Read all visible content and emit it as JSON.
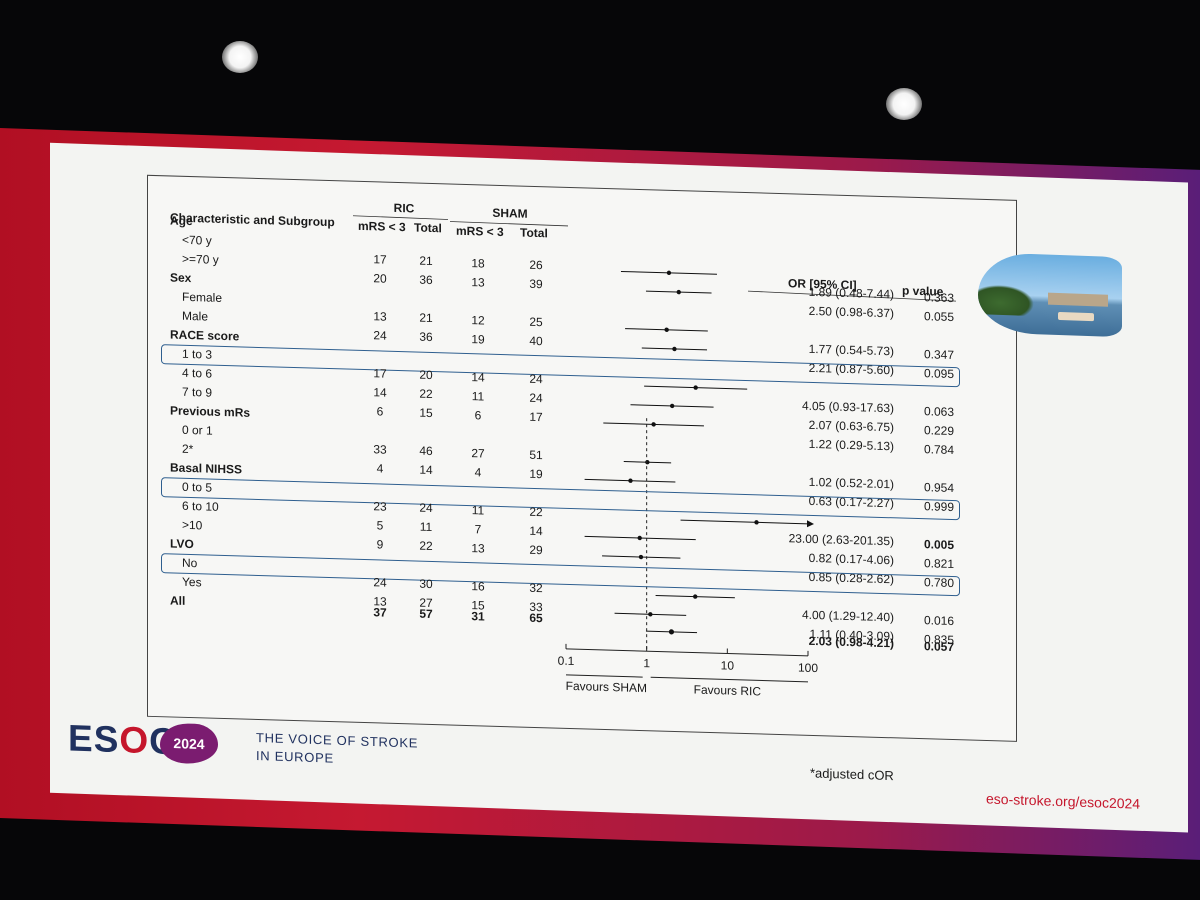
{
  "slide": {
    "footnote": "*adjusted cOR",
    "logo_text": "ESOC",
    "logo_year": "2024",
    "tagline_line1": "THE VOICE OF STROKE",
    "tagline_line2": "IN EUROPE",
    "url": "eso-stroke.org/esoc2024"
  },
  "colors": {
    "slide_band_red": "#c5162c",
    "slide_band_purple": "#5a1e78",
    "highlight_box": "#2f5f8f",
    "logo_navy": "#20315f"
  },
  "table": {
    "headers": {
      "characteristic": "Characteristic and Subgroup",
      "group1": "RIC",
      "group2": "SHAM",
      "mrs": "mRS < 3",
      "total": "Total",
      "or_ci": "OR [95% CI]",
      "p_value": "p value"
    },
    "rows": [
      {
        "label": "Age",
        "header": true
      },
      {
        "label": "<70 y",
        "ric_mrs": "17",
        "ric_total": "21",
        "sham_mrs": "18",
        "sham_total": "26",
        "or_text": "1.89 (0.48-7.44)",
        "p": "0.363"
      },
      {
        "label": ">=70 y",
        "ric_mrs": "20",
        "ric_total": "36",
        "sham_mrs": "13",
        "sham_total": "39",
        "or_text": "2.50 (0.98-6.37)",
        "p": "0.055"
      },
      {
        "label": "Sex",
        "header": true
      },
      {
        "label": "Female",
        "ric_mrs": "13",
        "ric_total": "21",
        "sham_mrs": "12",
        "sham_total": "25",
        "or_text": "1.77 (0.54-5.73)",
        "p": "0.347"
      },
      {
        "label": "Male",
        "ric_mrs": "24",
        "ric_total": "36",
        "sham_mrs": "19",
        "sham_total": "40",
        "or_text": "2.21 (0.87-5.60)",
        "p": "0.095"
      },
      {
        "label": "RACE score",
        "header": true
      },
      {
        "label": "1 to 3",
        "ric_mrs": "17",
        "ric_total": "20",
        "sham_mrs": "14",
        "sham_total": "24",
        "or_text": "4.05 (0.93-17.63)",
        "p": "0.063",
        "highlight": true
      },
      {
        "label": "4 to 6",
        "ric_mrs": "14",
        "ric_total": "22",
        "sham_mrs": "11",
        "sham_total": "24",
        "or_text": "2.07 (0.63-6.75)",
        "p": "0.229"
      },
      {
        "label": "7 to 9",
        "ric_mrs": "6",
        "ric_total": "15",
        "sham_mrs": "6",
        "sham_total": "17",
        "or_text": "1.22 (0.29-5.13)",
        "p": "0.784"
      },
      {
        "label": "Previous mRs",
        "header": true
      },
      {
        "label": "0 or 1",
        "ric_mrs": "33",
        "ric_total": "46",
        "sham_mrs": "27",
        "sham_total": "51",
        "or_text": "1.02 (0.52-2.01)",
        "p": "0.954"
      },
      {
        "label": "2*",
        "ric_mrs": "4",
        "ric_total": "14",
        "sham_mrs": "4",
        "sham_total": "19",
        "or_text": "0.63 (0.17-2.27)",
        "p": "0.999"
      },
      {
        "label": "Basal NIHSS",
        "header": true
      },
      {
        "label": "0 to 5",
        "ric_mrs": "23",
        "ric_total": "24",
        "sham_mrs": "11",
        "sham_total": "22",
        "or_text": "23.00 (2.63-201.35)",
        "p": "0.005",
        "highlight": true,
        "p_bold": true
      },
      {
        "label": "6 to 10",
        "ric_mrs": "5",
        "ric_total": "11",
        "sham_mrs": "7",
        "sham_total": "14",
        "or_text": "0.82 (0.17-4.06)",
        "p": "0.821"
      },
      {
        "label": ">10",
        "ric_mrs": "9",
        "ric_total": "22",
        "sham_mrs": "13",
        "sham_total": "29",
        "or_text": "0.85 (0.28-2.62)",
        "p": "0.780"
      },
      {
        "label": "LVO",
        "header": true
      },
      {
        "label": "No",
        "ric_mrs": "24",
        "ric_total": "30",
        "sham_mrs": "16",
        "sham_total": "32",
        "or_text": "4.00 (1.29-12.40)",
        "p": "0.016",
        "highlight": true
      },
      {
        "label": "Yes",
        "ric_mrs": "13",
        "ric_total": "27",
        "sham_mrs": "15",
        "sham_total": "33",
        "or_text": "1.11 (0.40-3.09)",
        "p": "0.835"
      },
      {
        "label": "All",
        "header": true,
        "overall": true,
        "ric_mrs": "37",
        "ric_total": "57",
        "sham_mrs": "31",
        "sham_total": "65",
        "or_text": "2.03 (0.98-4.21)",
        "p": "0.057"
      }
    ]
  },
  "chart_data": {
    "type": "forest",
    "x_scale": "log",
    "xlim": [
      0.1,
      100
    ],
    "reference_line": 1,
    "x_ticks": [
      "0.1",
      "1",
      "10",
      "100"
    ],
    "xlabel_left": "Favours SHAM",
    "xlabel_right": "Favours RIC",
    "grid": false,
    "points": [
      {
        "subgroup": "<70 y",
        "or": 1.89,
        "lo": 0.48,
        "hi": 7.44
      },
      {
        "subgroup": ">=70 y",
        "or": 2.5,
        "lo": 0.98,
        "hi": 6.37
      },
      {
        "subgroup": "Female",
        "or": 1.77,
        "lo": 0.54,
        "hi": 5.73
      },
      {
        "subgroup": "Male",
        "or": 2.21,
        "lo": 0.87,
        "hi": 5.6
      },
      {
        "subgroup": "1 to 3",
        "or": 4.05,
        "lo": 0.93,
        "hi": 17.63
      },
      {
        "subgroup": "4 to 6",
        "or": 2.07,
        "lo": 0.63,
        "hi": 6.75
      },
      {
        "subgroup": "7 to 9",
        "or": 1.22,
        "lo": 0.29,
        "hi": 5.13
      },
      {
        "subgroup": "0 or 1",
        "or": 1.02,
        "lo": 0.52,
        "hi": 2.01
      },
      {
        "subgroup": "2*",
        "or": 0.63,
        "lo": 0.17,
        "hi": 2.27
      },
      {
        "subgroup": "0 to 5",
        "or": 23.0,
        "lo": 2.63,
        "hi": 201.35,
        "arrow": true
      },
      {
        "subgroup": "6 to 10",
        "or": 0.82,
        "lo": 0.17,
        "hi": 4.06
      },
      {
        "subgroup": ">10",
        "or": 0.85,
        "lo": 0.28,
        "hi": 2.62
      },
      {
        "subgroup": "No",
        "or": 4.0,
        "lo": 1.29,
        "hi": 12.4
      },
      {
        "subgroup": "Yes",
        "or": 1.11,
        "lo": 0.4,
        "hi": 3.09
      },
      {
        "subgroup": "All",
        "or": 2.03,
        "lo": 0.98,
        "hi": 4.21
      }
    ]
  }
}
